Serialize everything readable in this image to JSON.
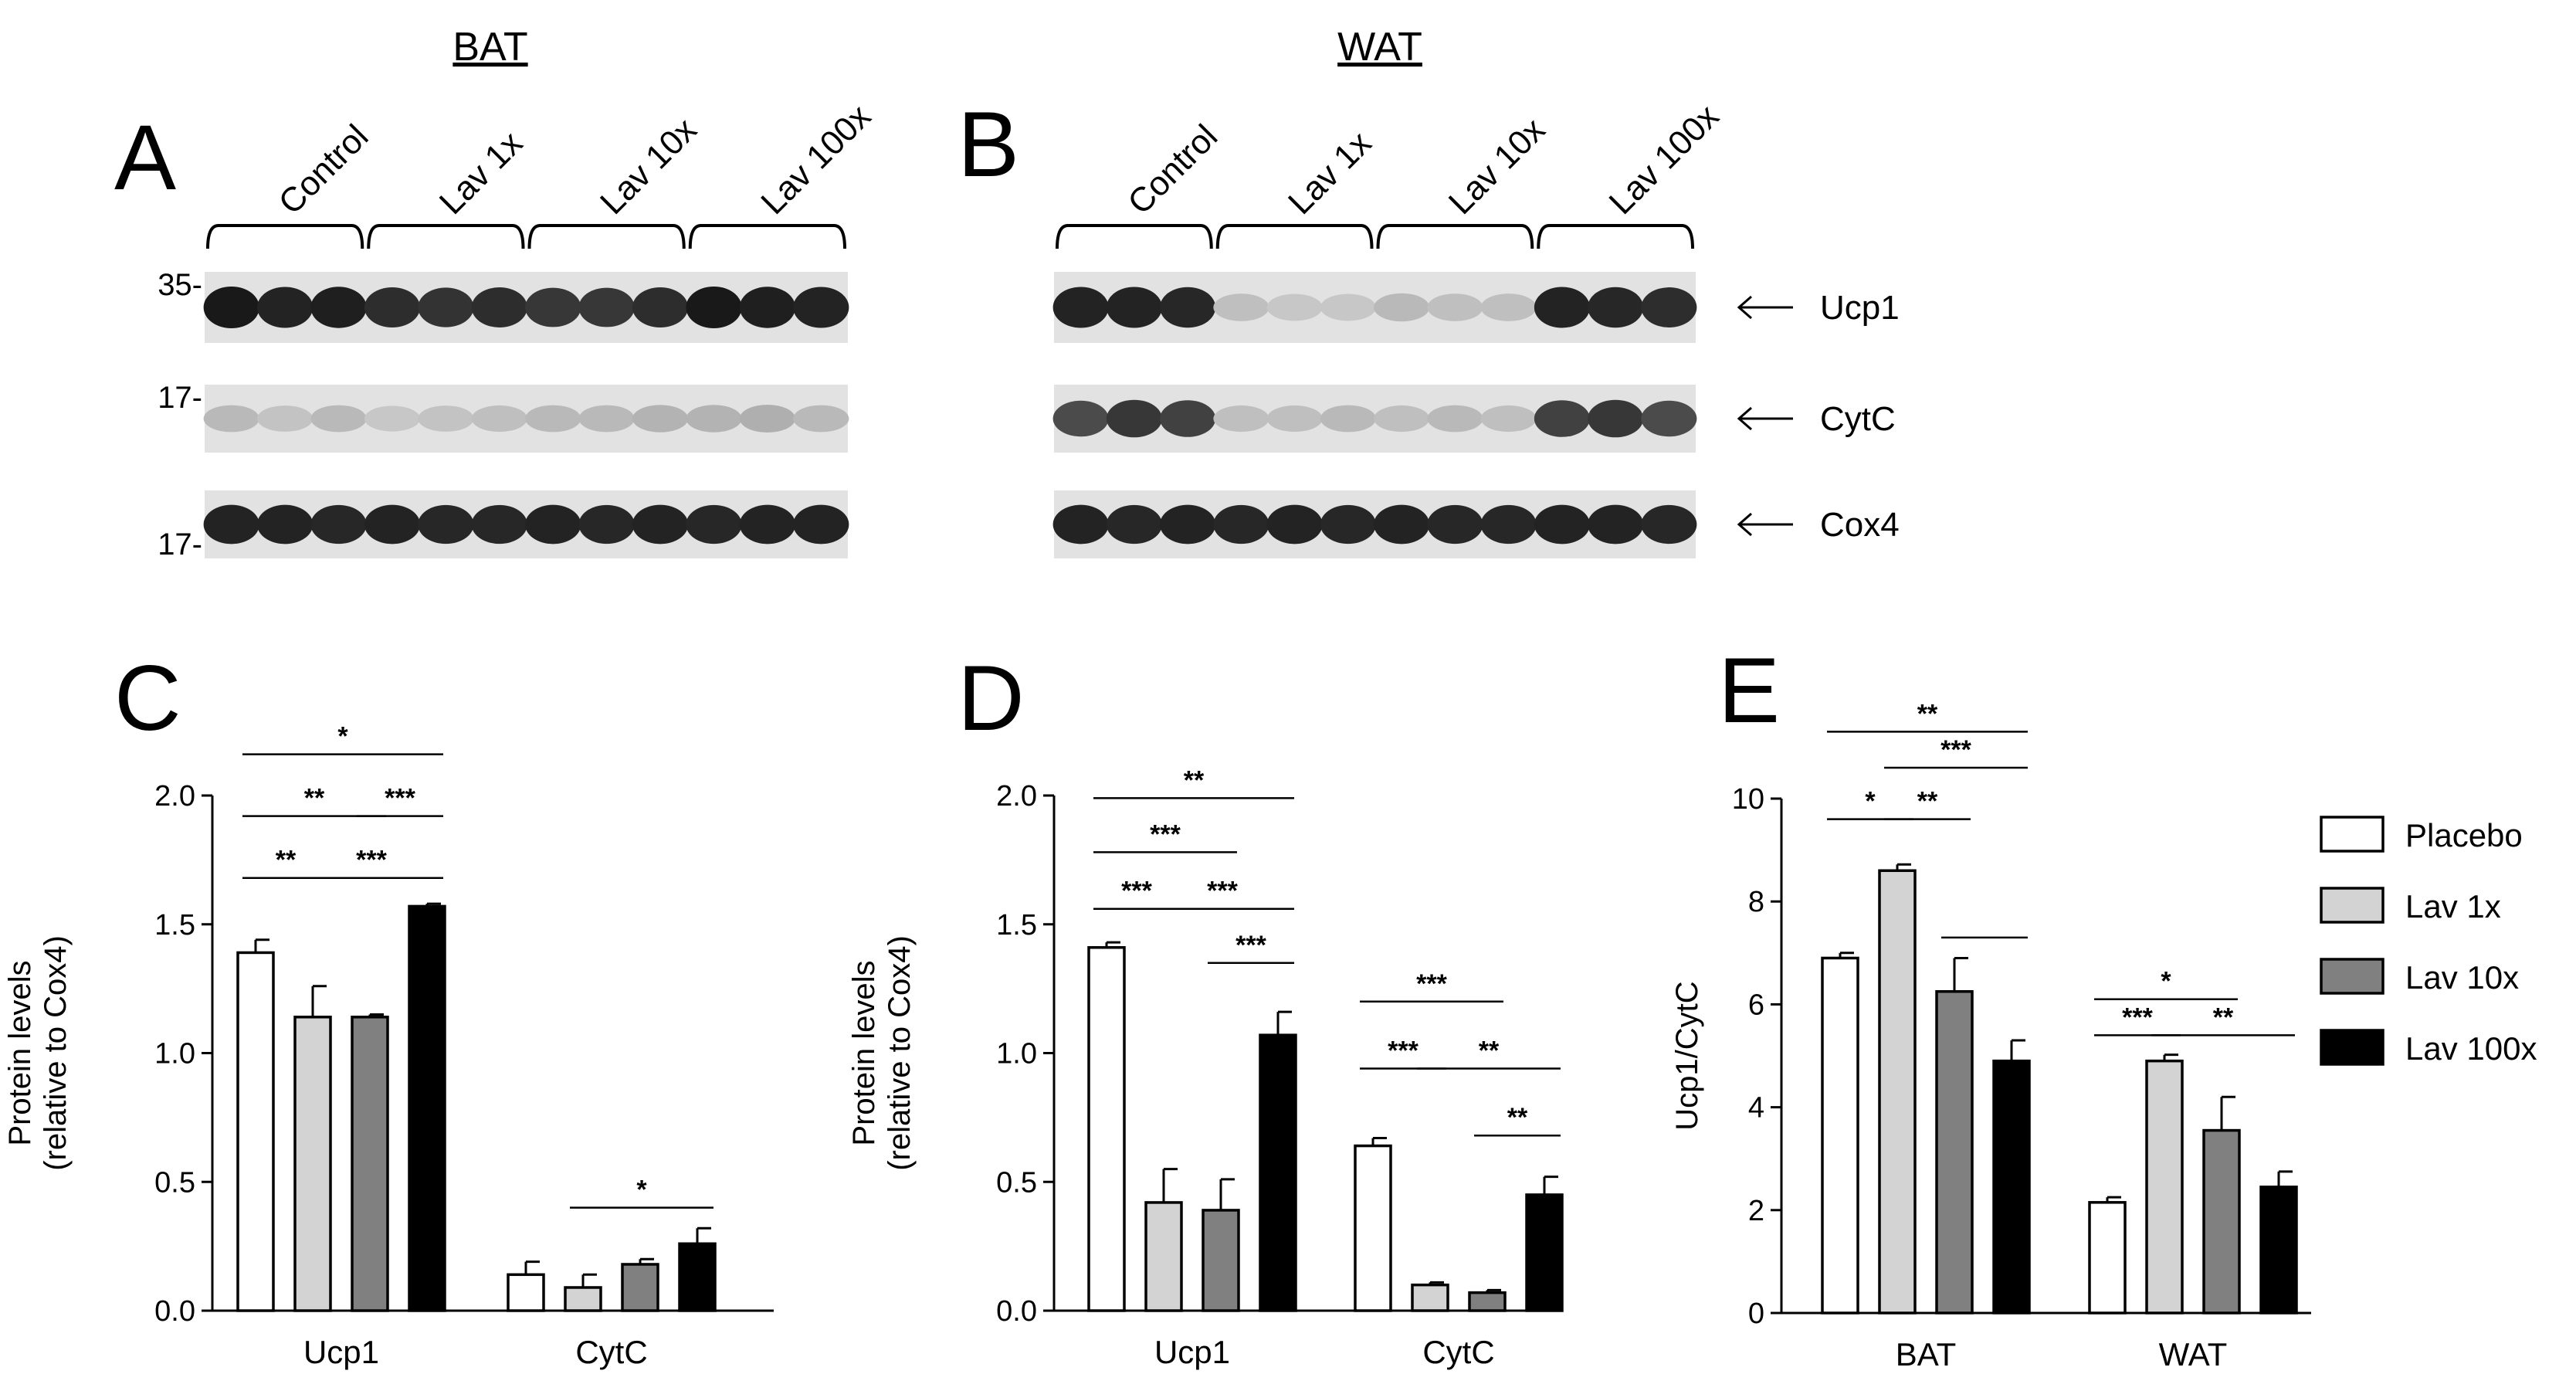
{
  "blots": {
    "bat": {
      "letter": "A",
      "tissue": "BAT",
      "groups": [
        "Control",
        "Lav 1x",
        "Lav 10x",
        "Lav 100x"
      ],
      "mw_markers": [
        "35-",
        "17-",
        "17-"
      ],
      "rows": [
        {
          "protein": "Ucp1",
          "lanes": [
            0.95,
            0.9,
            0.92,
            0.85,
            0.82,
            0.85,
            0.8,
            0.8,
            0.85,
            0.95,
            0.92,
            0.9
          ]
        },
        {
          "protein": "CytC",
          "lanes": [
            0.15,
            0.1,
            0.15,
            0.08,
            0.1,
            0.12,
            0.15,
            0.15,
            0.18,
            0.18,
            0.2,
            0.15
          ]
        },
        {
          "protein": "Cox4",
          "lanes": [
            0.9,
            0.9,
            0.88,
            0.9,
            0.88,
            0.88,
            0.9,
            0.88,
            0.9,
            0.88,
            0.9,
            0.9
          ]
        }
      ]
    },
    "wat": {
      "letter": "B",
      "tissue": "WAT",
      "groups": [
        "Control",
        "Lav 1x",
        "Lav 10x",
        "Lav 100x"
      ],
      "rows": [
        {
          "protein": "Ucp1",
          "lanes": [
            0.9,
            0.9,
            0.88,
            0.12,
            0.08,
            0.08,
            0.15,
            0.12,
            0.12,
            0.9,
            0.88,
            0.85
          ]
        },
        {
          "protein": "CytC",
          "lanes": [
            0.7,
            0.8,
            0.75,
            0.12,
            0.12,
            0.15,
            0.12,
            0.15,
            0.12,
            0.75,
            0.8,
            0.7
          ]
        },
        {
          "protein": "Cox4",
          "lanes": [
            0.9,
            0.88,
            0.9,
            0.88,
            0.9,
            0.88,
            0.9,
            0.88,
            0.88,
            0.9,
            0.9,
            0.88
          ]
        }
      ]
    }
  },
  "legend": {
    "entries": [
      "Placebo",
      "Lav 1x",
      "Lav 10x",
      "Lav 100x"
    ],
    "colors": [
      "#ffffff",
      "#d3d3d3",
      "#808080",
      "#000000"
    ]
  },
  "chart_data": [
    {
      "type": "bar",
      "panel": "C",
      "categories": [
        "Ucp1",
        "CytC"
      ],
      "ylabel_lines": [
        "Protein levels",
        "(relative to Cox4)"
      ],
      "ylim": [
        0,
        2.0
      ],
      "yticks": [
        "0.0",
        "0.5",
        "1.0",
        "1.5",
        "2.0"
      ],
      "series": [
        {
          "name": "Placebo",
          "values": [
            1.39,
            0.14
          ],
          "errors": [
            0.05,
            0.05
          ]
        },
        {
          "name": "Lav 1x",
          "values": [
            1.14,
            0.09
          ],
          "errors": [
            0.12,
            0.05
          ]
        },
        {
          "name": "Lav 10x",
          "values": [
            1.14,
            0.18
          ],
          "errors": [
            0.01,
            0.02
          ]
        },
        {
          "name": "Lav 100x",
          "values": [
            1.57,
            0.26
          ],
          "errors": [
            0.01,
            0.06
          ]
        }
      ],
      "significance": [
        {
          "label": "*",
          "cat": 0,
          "from": 0,
          "to": 3,
          "y": 2.16
        },
        {
          "label": "**",
          "cat": 0,
          "from": 0,
          "to": 2,
          "y": 1.92
        },
        {
          "label": "***",
          "cat": 0,
          "from": 2,
          "to": 3,
          "y": 1.92
        },
        {
          "label": "**",
          "cat": 0,
          "from": 0,
          "to": 1,
          "y": 1.68
        },
        {
          "label": "***",
          "cat": 0,
          "from": 1,
          "to": 3,
          "y": 1.68
        },
        {
          "label": "*",
          "cat": 1,
          "from": 1,
          "to": 3,
          "y": 0.4
        }
      ]
    },
    {
      "type": "bar",
      "panel": "D",
      "categories": [
        "Ucp1",
        "CytC"
      ],
      "ylabel_lines": [
        "Protein levels",
        "(relative to Cox4)"
      ],
      "ylim": [
        0,
        2.0
      ],
      "yticks": [
        "0.0",
        "0.5",
        "1.0",
        "1.5",
        "2.0"
      ],
      "series": [
        {
          "name": "Placebo",
          "values": [
            1.41,
            0.64
          ],
          "errors": [
            0.02,
            0.03
          ]
        },
        {
          "name": "Lav 1x",
          "values": [
            0.42,
            0.1
          ],
          "errors": [
            0.13,
            0.01
          ]
        },
        {
          "name": "Lav 10x",
          "values": [
            0.39,
            0.07
          ],
          "errors": [
            0.12,
            0.01
          ]
        },
        {
          "name": "Lav 100x",
          "values": [
            1.07,
            0.45
          ],
          "errors": [
            0.09,
            0.07
          ]
        }
      ],
      "significance": [
        {
          "label": "**",
          "cat": 0,
          "from": 0,
          "to": 3,
          "y": 1.99
        },
        {
          "label": "***",
          "cat": 0,
          "from": 0,
          "to": 2,
          "y": 1.78
        },
        {
          "label": "***",
          "cat": 0,
          "from": 0,
          "to": 1,
          "y": 1.56
        },
        {
          "label": "***",
          "cat": 0,
          "from": 1,
          "to": 3,
          "y": 1.56
        },
        {
          "label": "***",
          "cat": 0,
          "from": 2,
          "to": 3,
          "y": 1.35
        },
        {
          "label": "***",
          "cat": 1,
          "from": 0,
          "to": 2,
          "y": 1.2
        },
        {
          "label": "***",
          "cat": 1,
          "from": 0,
          "to": 1,
          "y": 0.94
        },
        {
          "label": "**",
          "cat": 1,
          "from": 1,
          "to": 3,
          "y": 0.94
        },
        {
          "label": "**",
          "cat": 1,
          "from": 2,
          "to": 3,
          "y": 0.68
        }
      ]
    },
    {
      "type": "bar",
      "panel": "E",
      "categories": [
        "BAT",
        "WAT"
      ],
      "ylabel_lines": [
        "Ucp1/CytC"
      ],
      "ylim": [
        0,
        10
      ],
      "yticks": [
        "0",
        "2",
        "4",
        "6",
        "8",
        "10"
      ],
      "series": [
        {
          "name": "Placebo",
          "values": [
            6.9,
            2.15
          ],
          "errors": [
            0.1,
            0.1
          ]
        },
        {
          "name": "Lav 1x",
          "values": [
            8.6,
            4.9
          ],
          "errors": [
            0.12,
            0.12
          ]
        },
        {
          "name": "Lav 10x",
          "values": [
            6.25,
            3.55
          ],
          "errors": [
            0.65,
            0.65
          ]
        },
        {
          "name": "Lav 100x",
          "values": [
            4.9,
            2.45
          ],
          "errors": [
            0.4,
            0.3
          ]
        }
      ],
      "significance": [
        {
          "label": "**",
          "cat": 0,
          "from": 0,
          "to": 3,
          "y": 11.3
        },
        {
          "label": "***",
          "cat": 0,
          "from": 1,
          "to": 3,
          "y": 10.6
        },
        {
          "label": "*",
          "cat": 0,
          "from": 0,
          "to": 1,
          "y": 9.6
        },
        {
          "label": "**",
          "cat": 0,
          "from": 1,
          "to": 2,
          "y": 9.6
        },
        {
          "label": "",
          "cat": 0,
          "from": 2,
          "to": 3,
          "y": 7.3
        },
        {
          "label": "*",
          "cat": 1,
          "from": 0,
          "to": 2,
          "y": 6.1
        },
        {
          "label": "***",
          "cat": 1,
          "from": 0,
          "to": 1,
          "y": 5.4
        },
        {
          "label": "**",
          "cat": 1,
          "from": 1,
          "to": 3,
          "y": 5.4
        }
      ]
    }
  ]
}
